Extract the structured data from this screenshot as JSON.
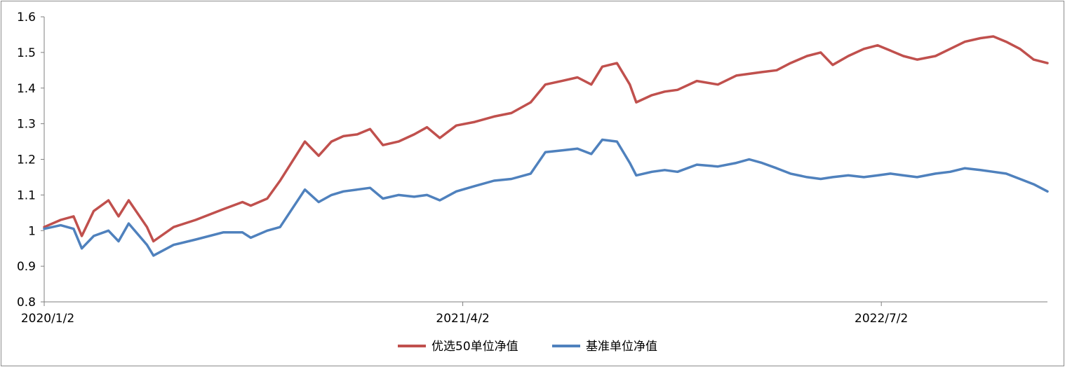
{
  "chart_data": {
    "type": "line",
    "title": "",
    "xlabel": "",
    "ylabel": "",
    "ylim": [
      0.8,
      1.6
    ],
    "yticks": [
      "0.8",
      "0.9",
      "1",
      "1.1",
      "1.2",
      "1.3",
      "1.4",
      "1.5",
      "1.6"
    ],
    "xticks": [
      "2020/1/2",
      "2021/4/2",
      "2022/7/2"
    ],
    "xlim": [
      "2020/1/2",
      "2022/12/30"
    ],
    "grid": false,
    "legend_position": "bottom",
    "series": [
      {
        "name": "优选50单位净值",
        "color": "#C0504D",
        "points": [
          [
            "2020/1/2",
            1.01
          ],
          [
            "2020/1/20",
            1.03
          ],
          [
            "2020/2/3",
            1.04
          ],
          [
            "2020/2/12",
            0.985
          ],
          [
            "2020/2/25",
            1.055
          ],
          [
            "2020/3/12",
            1.085
          ],
          [
            "2020/3/23",
            1.04
          ],
          [
            "2020/4/3",
            1.085
          ],
          [
            "2020/4/23",
            1.01
          ],
          [
            "2020/4/30",
            0.97
          ],
          [
            "2020/5/22",
            1.01
          ],
          [
            "2020/6/15",
            1.03
          ],
          [
            "2020/7/15",
            1.06
          ],
          [
            "2020/8/5",
            1.08
          ],
          [
            "2020/8/14",
            1.07
          ],
          [
            "2020/9/1",
            1.09
          ],
          [
            "2020/9/15",
            1.14
          ],
          [
            "2020/10/12",
            1.25
          ],
          [
            "2020/10/27",
            1.21
          ],
          [
            "2020/11/10",
            1.25
          ],
          [
            "2020/11/23",
            1.265
          ],
          [
            "2020/12/8",
            1.27
          ],
          [
            "2020/12/22",
            1.285
          ],
          [
            "2021/1/5",
            1.24
          ],
          [
            "2021/1/22",
            1.25
          ],
          [
            "2021/2/8",
            1.27
          ],
          [
            "2021/2/22",
            1.29
          ],
          [
            "2021/3/8",
            1.26
          ],
          [
            "2021/3/26",
            1.295
          ],
          [
            "2021/4/15",
            1.305
          ],
          [
            "2021/5/6",
            1.32
          ],
          [
            "2021/5/25",
            1.33
          ],
          [
            "2021/6/15",
            1.36
          ],
          [
            "2021/7/1",
            1.41
          ],
          [
            "2021/7/19",
            1.42
          ],
          [
            "2021/8/5",
            1.43
          ],
          [
            "2021/8/20",
            1.41
          ],
          [
            "2021/9/1",
            1.46
          ],
          [
            "2021/9/17",
            1.47
          ],
          [
            "2021/10/1",
            1.41
          ],
          [
            "2021/10/8",
            1.36
          ],
          [
            "2021/10/25",
            1.38
          ],
          [
            "2021/11/8",
            1.39
          ],
          [
            "2021/11/22",
            1.395
          ],
          [
            "2021/12/13",
            1.42
          ],
          [
            "2022/1/5",
            1.41
          ],
          [
            "2022/1/25",
            1.435
          ],
          [
            "2022/2/8",
            1.44
          ],
          [
            "2022/2/22",
            1.445
          ],
          [
            "2022/3/10",
            1.45
          ],
          [
            "2022/3/25",
            1.47
          ],
          [
            "2022/4/12",
            1.49
          ],
          [
            "2022/4/27",
            1.5
          ],
          [
            "2022/5/10",
            1.465
          ],
          [
            "2022/5/27",
            1.49
          ],
          [
            "2022/6/13",
            1.51
          ],
          [
            "2022/6/28",
            1.52
          ],
          [
            "2022/7/12",
            1.505
          ],
          [
            "2022/7/26",
            1.49
          ],
          [
            "2022/8/10",
            1.48
          ],
          [
            "2022/8/30",
            1.49
          ],
          [
            "2022/9/15",
            1.51
          ],
          [
            "2022/10/1",
            1.53
          ],
          [
            "2022/10/18",
            1.54
          ],
          [
            "2022/11/1",
            1.545
          ],
          [
            "2022/11/15",
            1.53
          ],
          [
            "2022/11/30",
            1.51
          ],
          [
            "2022/12/15",
            1.48
          ],
          [
            "2022/12/30",
            1.47
          ]
        ]
      },
      {
        "name": "基准单位净值",
        "color": "#4F81BD",
        "points": [
          [
            "2020/1/2",
            1.005
          ],
          [
            "2020/1/20",
            1.015
          ],
          [
            "2020/2/3",
            1.005
          ],
          [
            "2020/2/12",
            0.95
          ],
          [
            "2020/2/25",
            0.985
          ],
          [
            "2020/3/12",
            1.0
          ],
          [
            "2020/3/23",
            0.97
          ],
          [
            "2020/4/3",
            1.02
          ],
          [
            "2020/4/23",
            0.96
          ],
          [
            "2020/4/30",
            0.93
          ],
          [
            "2020/5/22",
            0.96
          ],
          [
            "2020/6/15",
            0.975
          ],
          [
            "2020/7/15",
            0.995
          ],
          [
            "2020/8/5",
            0.995
          ],
          [
            "2020/8/14",
            0.98
          ],
          [
            "2020/9/1",
            1.0
          ],
          [
            "2020/9/15",
            1.01
          ],
          [
            "2020/10/12",
            1.115
          ],
          [
            "2020/10/27",
            1.08
          ],
          [
            "2020/11/10",
            1.1
          ],
          [
            "2020/11/23",
            1.11
          ],
          [
            "2020/12/8",
            1.115
          ],
          [
            "2020/12/22",
            1.12
          ],
          [
            "2021/1/5",
            1.09
          ],
          [
            "2021/1/22",
            1.1
          ],
          [
            "2021/2/8",
            1.095
          ],
          [
            "2021/2/22",
            1.1
          ],
          [
            "2021/3/8",
            1.085
          ],
          [
            "2021/3/26",
            1.11
          ],
          [
            "2021/4/15",
            1.125
          ],
          [
            "2021/5/6",
            1.14
          ],
          [
            "2021/5/25",
            1.145
          ],
          [
            "2021/6/15",
            1.16
          ],
          [
            "2021/7/1",
            1.22
          ],
          [
            "2021/7/19",
            1.225
          ],
          [
            "2021/8/5",
            1.23
          ],
          [
            "2021/8/20",
            1.215
          ],
          [
            "2021/9/1",
            1.255
          ],
          [
            "2021/9/17",
            1.25
          ],
          [
            "2021/10/1",
            1.19
          ],
          [
            "2021/10/8",
            1.155
          ],
          [
            "2021/10/25",
            1.165
          ],
          [
            "2021/11/8",
            1.17
          ],
          [
            "2021/11/22",
            1.165
          ],
          [
            "2021/12/13",
            1.185
          ],
          [
            "2022/1/5",
            1.18
          ],
          [
            "2022/1/25",
            1.19
          ],
          [
            "2022/2/8",
            1.2
          ],
          [
            "2022/2/22",
            1.19
          ],
          [
            "2022/3/10",
            1.175
          ],
          [
            "2022/3/25",
            1.16
          ],
          [
            "2022/4/12",
            1.15
          ],
          [
            "2022/4/27",
            1.145
          ],
          [
            "2022/5/10",
            1.15
          ],
          [
            "2022/5/27",
            1.155
          ],
          [
            "2022/6/13",
            1.15
          ],
          [
            "2022/6/28",
            1.155
          ],
          [
            "2022/7/12",
            1.16
          ],
          [
            "2022/7/26",
            1.155
          ],
          [
            "2022/8/10",
            1.15
          ],
          [
            "2022/8/30",
            1.16
          ],
          [
            "2022/9/15",
            1.165
          ],
          [
            "2022/10/1",
            1.175
          ],
          [
            "2022/10/18",
            1.17
          ],
          [
            "2022/11/1",
            1.165
          ],
          [
            "2022/11/15",
            1.16
          ],
          [
            "2022/11/30",
            1.145
          ],
          [
            "2022/12/15",
            1.13
          ],
          [
            "2022/12/30",
            1.11
          ]
        ]
      }
    ]
  }
}
